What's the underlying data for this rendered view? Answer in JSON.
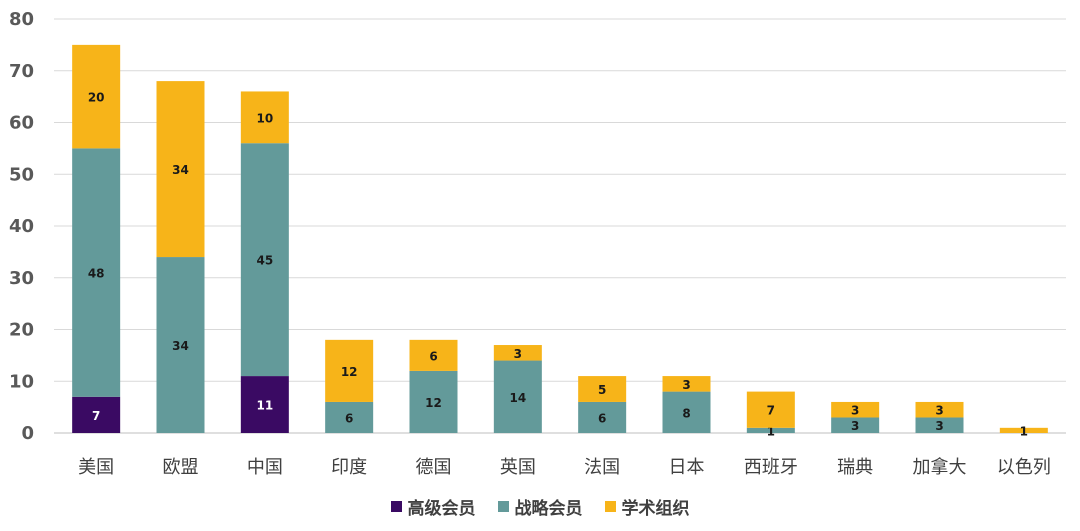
{
  "chart_data": {
    "type": "bar",
    "stacked": true,
    "title": "",
    "xlabel": "",
    "ylabel": "",
    "ylim": [
      0,
      80
    ],
    "yticks": [
      0,
      10,
      20,
      30,
      40,
      50,
      60,
      70,
      80
    ],
    "grid": true,
    "legend_position": "bottom",
    "categories": [
      "美国",
      "欧盟",
      "中国",
      "印度",
      "德国",
      "英国",
      "法国",
      "日本",
      "西班牙",
      "瑞典",
      "加拿大",
      "以色列"
    ],
    "series": [
      {
        "name": "高级会员",
        "color": "#3a0a63",
        "values": [
          7,
          0,
          11,
          0,
          0,
          0,
          0,
          0,
          0,
          0,
          0,
          0
        ]
      },
      {
        "name": "战略会员",
        "color": "#639a9a",
        "values": [
          48,
          34,
          45,
          6,
          12,
          14,
          6,
          8,
          1,
          3,
          3,
          0
        ]
      },
      {
        "name": "学术组织",
        "color": "#f7b419",
        "values": [
          20,
          34,
          10,
          12,
          6,
          3,
          5,
          3,
          7,
          3,
          3,
          1
        ]
      }
    ]
  }
}
